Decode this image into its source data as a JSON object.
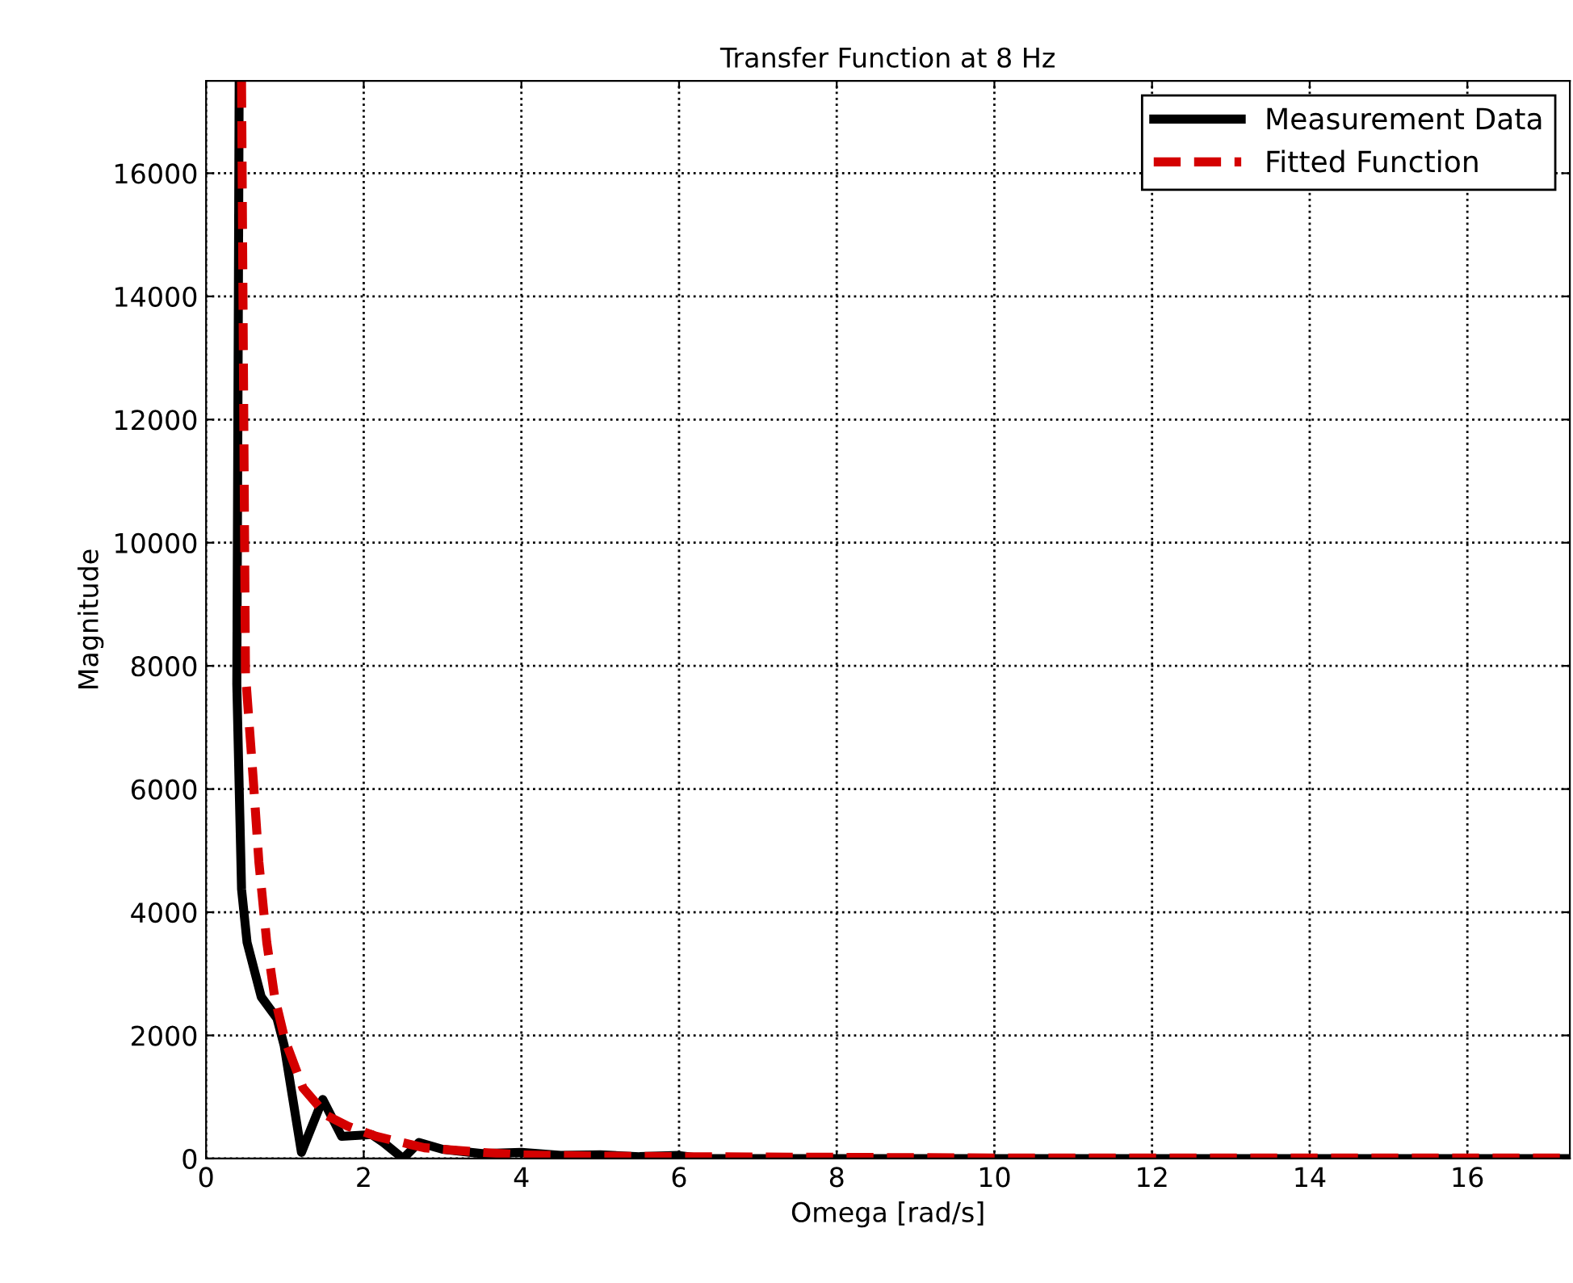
{
  "chart_data": {
    "type": "line",
    "title": "Transfer Function at 8 Hz",
    "xlabel": "Omega [rad/s]",
    "ylabel": "Magnitude",
    "series": [
      {
        "name": "Measurement Data",
        "color": "#000000",
        "line_style": "solid",
        "x": [
          0.42,
          0.41,
          0.39,
          0.45,
          0.52,
          0.7,
          0.9,
          0.99,
          1.21,
          1.48,
          1.72,
          2.1,
          2.25,
          2.5,
          2.7,
          3.0,
          3.5,
          4.0,
          4.5,
          5.0,
          5.5,
          6.0,
          6.3,
          8,
          10,
          12,
          14,
          16,
          17.3
        ],
        "values": [
          17500,
          14000,
          7700,
          4375,
          3510,
          2625,
          2275,
          1840,
          100,
          960,
          360,
          390,
          260,
          0,
          260,
          150,
          80,
          100,
          50,
          60,
          30,
          50,
          0,
          0,
          0,
          0,
          0,
          0,
          0
        ]
      },
      {
        "name": "Fitted Function",
        "color": "#d40000",
        "line_style": "dashed",
        "x": [
          0.45,
          0.5,
          0.6,
          0.67,
          0.77,
          0.87,
          1.0,
          1.23,
          1.53,
          1.8,
          2.16,
          2.77,
          3.5,
          4.0,
          5.0,
          6.0,
          8,
          10,
          12,
          14,
          16,
          17.3
        ],
        "values": [
          17500,
          7875,
          6130,
          4815,
          3510,
          2625,
          1930,
          1145,
          700,
          525,
          360,
          175,
          100,
          60,
          40,
          30,
          20,
          10,
          10,
          10,
          10,
          10
        ]
      }
    ],
    "xlim": [
      0,
      17.3
    ],
    "ylim": [
      0,
      17500
    ],
    "xticks": [
      0,
      2,
      4,
      6,
      8,
      10,
      12,
      14,
      16
    ],
    "yticks": [
      0,
      2000,
      4000,
      6000,
      8000,
      10000,
      12000,
      14000,
      16000
    ],
    "grid": true,
    "legend": "top right"
  }
}
